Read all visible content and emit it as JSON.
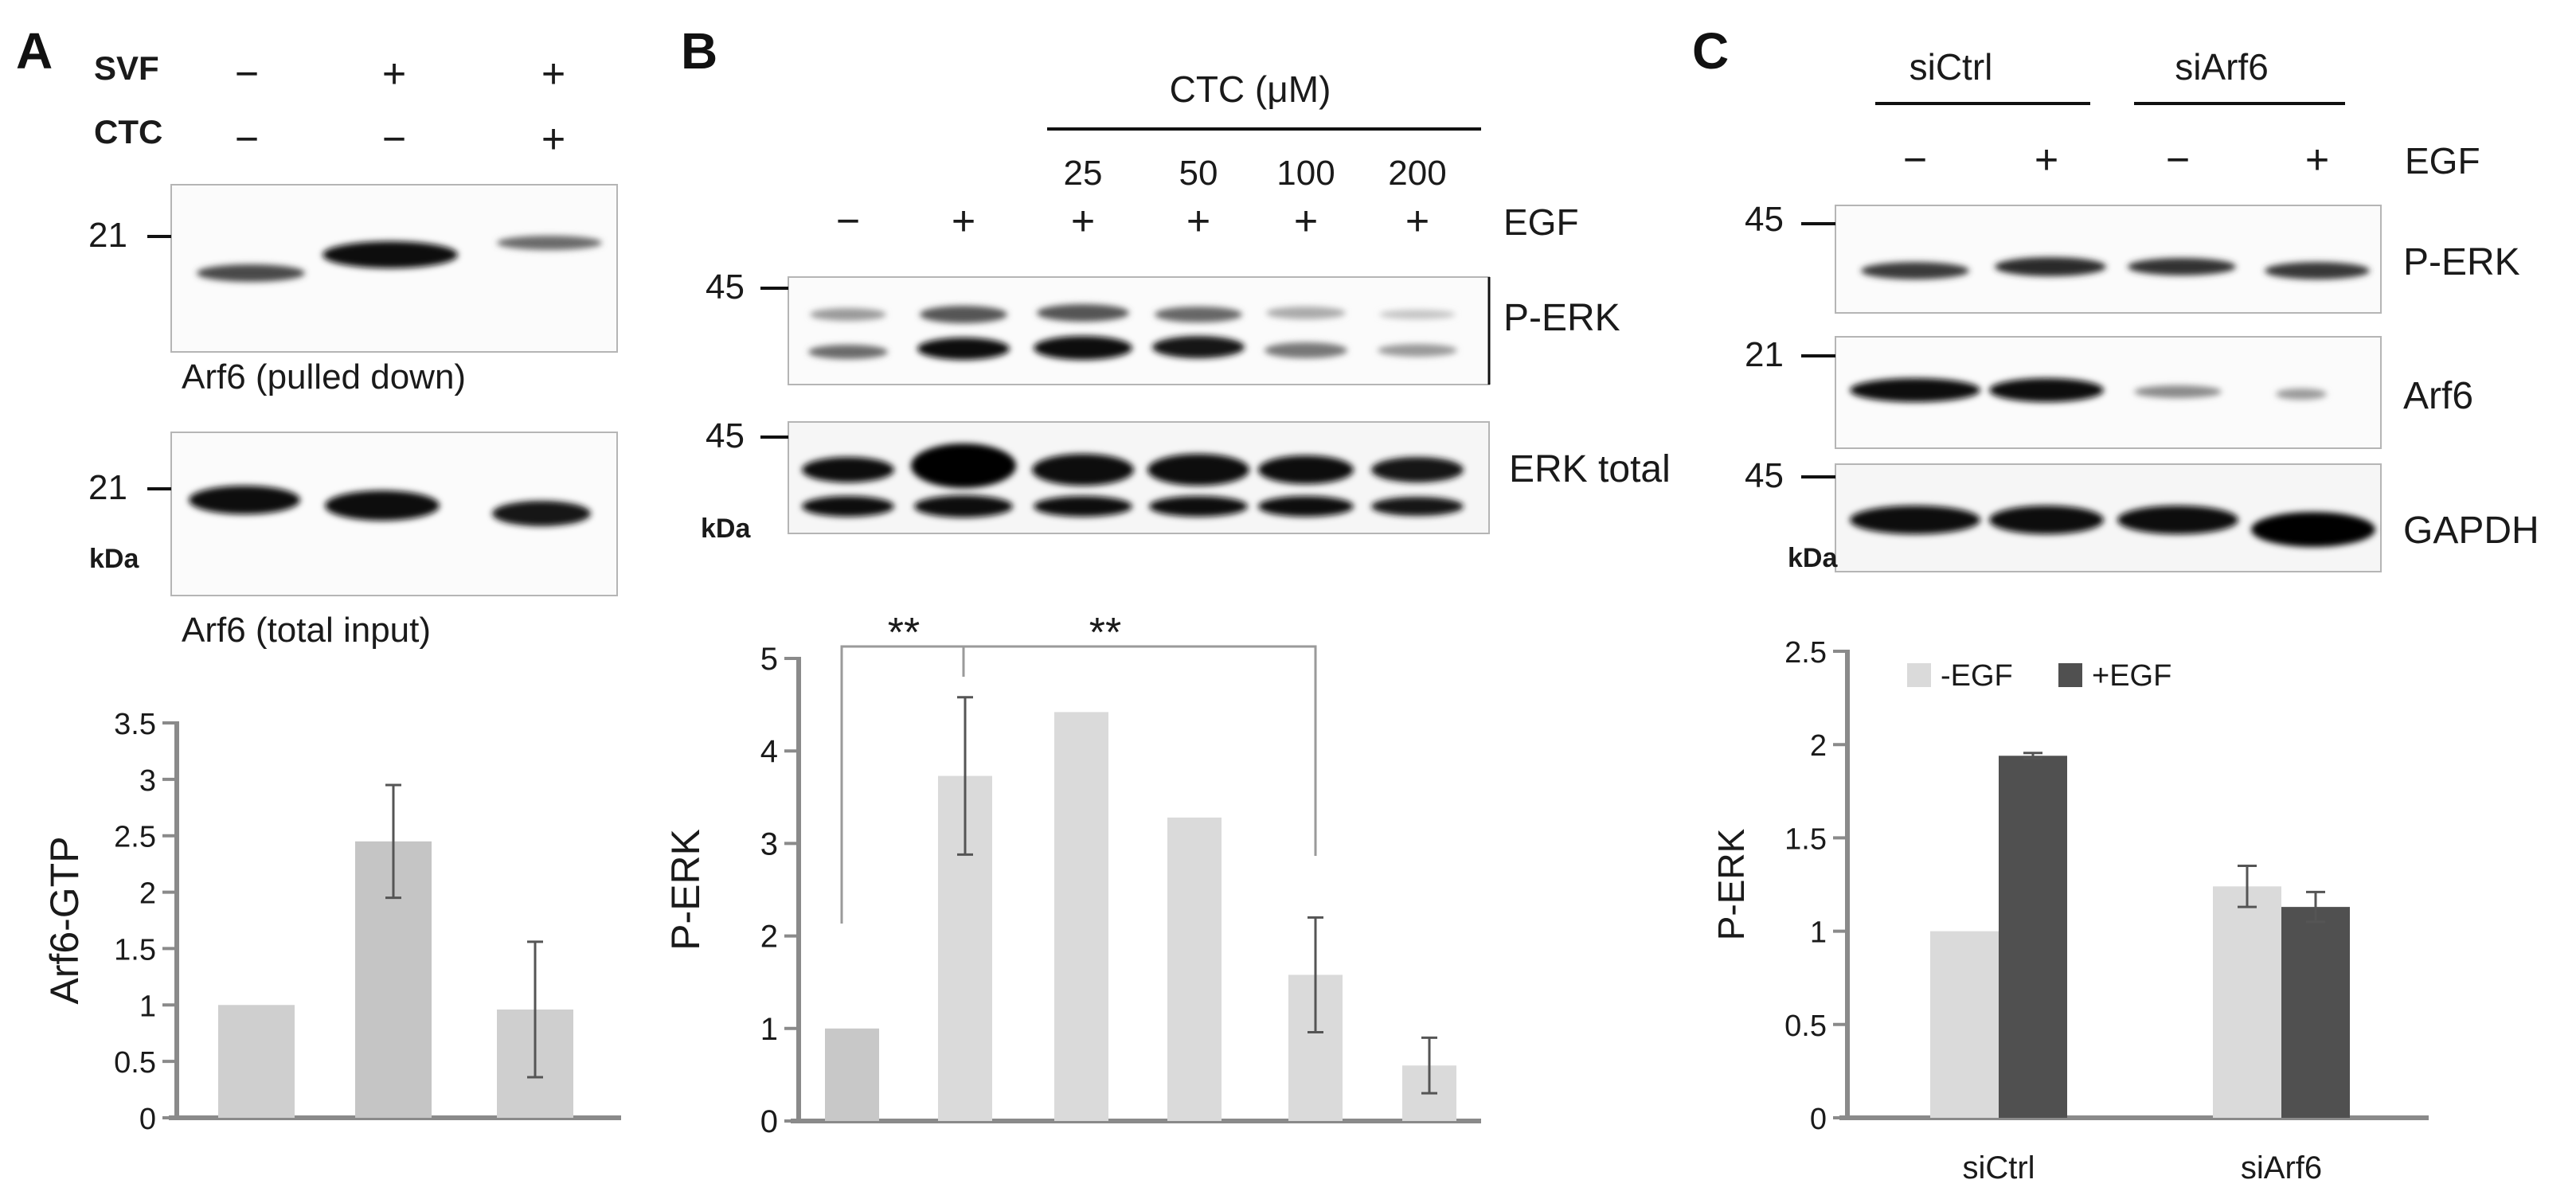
{
  "panels": {
    "a": {
      "letter": "A",
      "treatments": [
        {
          "label": "SVF",
          "values": [
            "−",
            "+",
            "+"
          ]
        },
        {
          "label": "CTC",
          "values": [
            "−",
            "−",
            "+"
          ]
        }
      ],
      "blots": [
        {
          "marker": "21",
          "caption": "Arf6 (pulled down)",
          "kda": ""
        },
        {
          "marker": "21",
          "caption": "Arf6 (total input)",
          "kda": "kDa"
        }
      ]
    },
    "b": {
      "letter": "B",
      "ctc_header": "CTC (μM)",
      "ctc_values": [
        "25",
        "50",
        "100",
        "200"
      ],
      "egf_values": [
        "−",
        "+",
        "+",
        "+",
        "+",
        "+"
      ],
      "egf_label": "EGF",
      "blots": [
        {
          "marker": "45",
          "label": "P-ERK",
          "kda": ""
        },
        {
          "marker": "45",
          "label": "ERK total",
          "kda": "kDa"
        }
      ],
      "significance": [
        "**",
        "**"
      ]
    },
    "c": {
      "letter": "C",
      "groups": [
        "siCtrl",
        "siArf6"
      ],
      "egf_values": [
        "−",
        "+",
        "−",
        "+"
      ],
      "egf_label": "EGF",
      "blots": [
        {
          "marker": "45",
          "label": "P-ERK",
          "kda": ""
        },
        {
          "marker": "21",
          "label": "Arf6",
          "kda": ""
        },
        {
          "marker": "45",
          "label": "GAPDH",
          "kda": "kDa"
        }
      ]
    }
  },
  "chart_data": [
    {
      "type": "bar",
      "categories": [
        "",
        "",
        ""
      ],
      "values": [
        1.0,
        2.45,
        0.96
      ],
      "errors": [
        0,
        0.5,
        0.6
      ],
      "ylabel": "Arf6-GTP",
      "ylim": [
        0,
        3.5
      ],
      "yticks": [
        "0",
        "0.5",
        "1",
        "1.5",
        "2",
        "2.5",
        "3",
        "3.5"
      ],
      "colors": [
        "#cfcfcf",
        "#c5c5c5",
        "#cfcfcf"
      ]
    },
    {
      "type": "bar",
      "categories": [
        "",
        "",
        "",
        "",
        "",
        ""
      ],
      "values": [
        1.0,
        3.73,
        4.42,
        3.28,
        1.58,
        0.6
      ],
      "errors": [
        0,
        0.85,
        0,
        0,
        0.62,
        0.3
      ],
      "ylabel": "P-ERK",
      "ylim": [
        0,
        5
      ],
      "yticks": [
        "0",
        "1",
        "2",
        "3",
        "4",
        "5"
      ],
      "colors": [
        "#c8c8c8",
        "#dadada",
        "#dadada",
        "#dadada",
        "#dadada",
        "#dadada"
      ]
    },
    {
      "type": "bar",
      "categories": [
        "siCtrl",
        "siArf6"
      ],
      "series": [
        {
          "name": "-EGF",
          "values": [
            1.0,
            1.24
          ],
          "errors": [
            0,
            0.11
          ],
          "color": "#dadada"
        },
        {
          "name": "+EGF",
          "values": [
            1.94,
            1.13
          ],
          "errors": [
            0.015,
            0.08
          ],
          "color": "#505050"
        }
      ],
      "ylabel": "P-ERK",
      "ylim": [
        0,
        2.5
      ],
      "yticks": [
        "0",
        "0.5",
        "1",
        "1.5",
        "2",
        "2.5"
      ],
      "legend": "top-left"
    }
  ]
}
